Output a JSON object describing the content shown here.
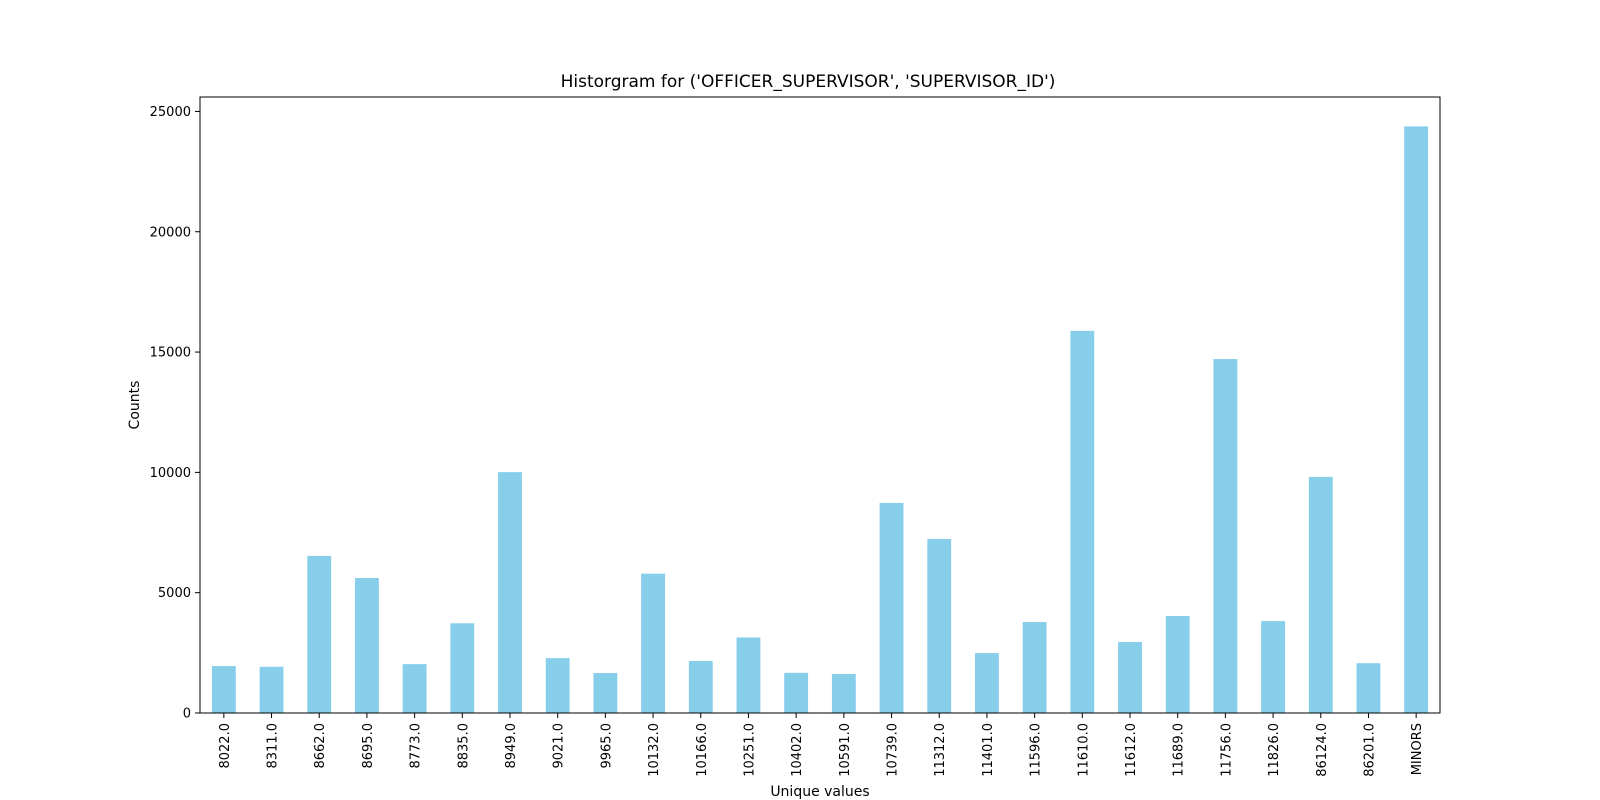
{
  "chart_data": {
    "type": "bar",
    "title": "Historgram for ('OFFICER_SUPERVISOR', 'SUPERVISOR_ID')",
    "xlabel": "Unique values",
    "ylabel": "Counts",
    "categories": [
      "8022.0",
      "8311.0",
      "8662.0",
      "8695.0",
      "8773.0",
      "8835.0",
      "8949.0",
      "9021.0",
      "9965.0",
      "10132.0",
      "10166.0",
      "10251.0",
      "10402.0",
      "10591.0",
      "10739.0",
      "11312.0",
      "11401.0",
      "11596.0",
      "11610.0",
      "11612.0",
      "11689.0",
      "11756.0",
      "11826.0",
      "86124.0",
      "86201.0",
      "MINORS"
    ],
    "values": [
      1950,
      1920,
      6530,
      5610,
      2030,
      3730,
      10010,
      2280,
      1660,
      5790,
      2160,
      3140,
      1670,
      1620,
      8730,
      7230,
      2490,
      3780,
      15880,
      2950,
      4030,
      14710,
      3820,
      9810,
      2070,
      24380
    ],
    "ylim": [
      0,
      25600
    ],
    "yticks": [
      0,
      5000,
      10000,
      15000,
      20000,
      25000
    ],
    "bar_color": "#87ceeb",
    "grid": false,
    "legend": "none"
  }
}
